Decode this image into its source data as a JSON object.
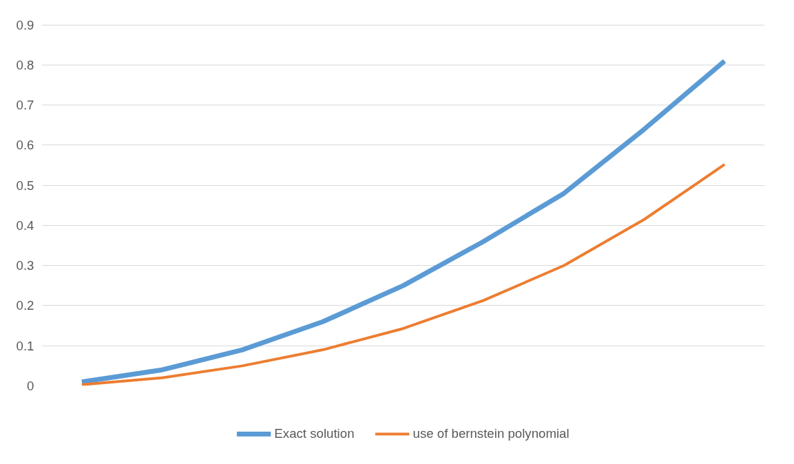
{
  "chart_data": {
    "type": "line",
    "categories": [
      null,
      null,
      null,
      null,
      null,
      null,
      null,
      null,
      null
    ],
    "series": [
      {
        "name": "Exact solution",
        "color": "#5b9bd5",
        "values": [
          0.01,
          0.04,
          0.09,
          0.16,
          0.25,
          0.36,
          0.48,
          0.64,
          0.81
        ]
      },
      {
        "name": "use of bernstein polynomial",
        "color": "#ed7d31",
        "values": [
          0.003,
          0.02,
          0.05,
          0.09,
          0.143,
          0.213,
          0.3,
          0.415,
          0.552
        ]
      }
    ],
    "ylim": [
      0,
      0.9
    ],
    "yticks": [
      0,
      0.1,
      0.2,
      0.3,
      0.4,
      0.5,
      0.6,
      0.7,
      0.8,
      0.9
    ],
    "grid": "y",
    "legend": "bottom",
    "tick_labels": "y",
    "marker": "none",
    "line_style": "solid"
  }
}
